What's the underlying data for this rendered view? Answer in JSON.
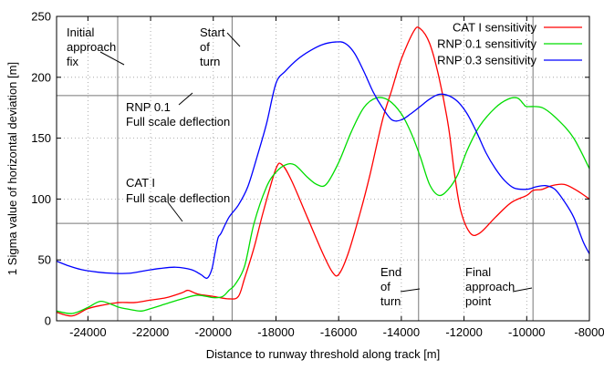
{
  "chart_data": {
    "type": "line",
    "xlabel": "Distance to runway threshold along track [m]",
    "ylabel": "1 Sigma value of horizontal deviation [m]",
    "xlim": [
      -25000,
      -8000
    ],
    "ylim": [
      0,
      250
    ],
    "grid": true,
    "legend_position": "top-right",
    "x_ticks": [
      -24000,
      -22000,
      -20000,
      -18000,
      -16000,
      -14000,
      -12000,
      -10000,
      -8000
    ],
    "x_tick_labels": [
      "-24000",
      "-22000",
      "-20000",
      "-18000",
      "-16000",
      "-14000",
      "-12000",
      "-10000",
      "-8000"
    ],
    "y_ticks": [
      0,
      50,
      100,
      150,
      200,
      250
    ],
    "y_tick_labels": [
      "0",
      "50",
      "100",
      "150",
      "200",
      "250"
    ],
    "series": [
      {
        "name": "CAT I sensitivity",
        "color": "#ff0000",
        "points": [
          [
            -25000,
            7
          ],
          [
            -24500,
            4
          ],
          [
            -24000,
            10
          ],
          [
            -23500,
            13
          ],
          [
            -23000,
            15
          ],
          [
            -22500,
            15
          ],
          [
            -22000,
            17
          ],
          [
            -21500,
            19
          ],
          [
            -21000,
            23
          ],
          [
            -20800,
            25
          ],
          [
            -20500,
            22
          ],
          [
            -20000,
            20
          ],
          [
            -19500,
            18
          ],
          [
            -19200,
            20
          ],
          [
            -19000,
            35
          ],
          [
            -18700,
            60
          ],
          [
            -18400,
            90
          ],
          [
            -18000,
            125
          ],
          [
            -17800,
            128
          ],
          [
            -17500,
            115
          ],
          [
            -17000,
            85
          ],
          [
            -16500,
            55
          ],
          [
            -16200,
            40
          ],
          [
            -16000,
            38
          ],
          [
            -15700,
            55
          ],
          [
            -15300,
            90
          ],
          [
            -15000,
            120
          ],
          [
            -14600,
            165
          ],
          [
            -14300,
            190
          ],
          [
            -14000,
            215
          ],
          [
            -13600,
            238
          ],
          [
            -13400,
            240
          ],
          [
            -13100,
            228
          ],
          [
            -12800,
            200
          ],
          [
            -12500,
            160
          ],
          [
            -12300,
            120
          ],
          [
            -12100,
            90
          ],
          [
            -11800,
            72
          ],
          [
            -11500,
            72
          ],
          [
            -11000,
            85
          ],
          [
            -10500,
            97
          ],
          [
            -10000,
            103
          ],
          [
            -9800,
            107
          ],
          [
            -9500,
            108
          ],
          [
            -9200,
            111
          ],
          [
            -8800,
            112
          ],
          [
            -8400,
            107
          ],
          [
            -8000,
            100
          ]
        ]
      },
      {
        "name": "RNP 0.1 sensitivity",
        "color": "#00dd00",
        "points": [
          [
            -25000,
            8
          ],
          [
            -24500,
            6
          ],
          [
            -24000,
            11
          ],
          [
            -23600,
            16
          ],
          [
            -23200,
            13
          ],
          [
            -23000,
            11
          ],
          [
            -22600,
            9
          ],
          [
            -22300,
            8
          ],
          [
            -22000,
            10
          ],
          [
            -21500,
            14
          ],
          [
            -21000,
            18
          ],
          [
            -20500,
            21
          ],
          [
            -20000,
            19
          ],
          [
            -19700,
            20
          ],
          [
            -19500,
            25
          ],
          [
            -19300,
            30
          ],
          [
            -19000,
            45
          ],
          [
            -18700,
            80
          ],
          [
            -18300,
            110
          ],
          [
            -18000,
            122
          ],
          [
            -17700,
            128
          ],
          [
            -17400,
            128
          ],
          [
            -17000,
            118
          ],
          [
            -16700,
            112
          ],
          [
            -16400,
            112
          ],
          [
            -16000,
            130
          ],
          [
            -15600,
            155
          ],
          [
            -15200,
            175
          ],
          [
            -14800,
            183
          ],
          [
            -14400,
            181
          ],
          [
            -14000,
            170
          ],
          [
            -13700,
            155
          ],
          [
            -13400,
            135
          ],
          [
            -13100,
            112
          ],
          [
            -12800,
            103
          ],
          [
            -12500,
            108
          ],
          [
            -12200,
            120
          ],
          [
            -11900,
            140
          ],
          [
            -11500,
            160
          ],
          [
            -11000,
            175
          ],
          [
            -10600,
            182
          ],
          [
            -10300,
            183
          ],
          [
            -10100,
            178
          ],
          [
            -10000,
            176
          ],
          [
            -9500,
            175
          ],
          [
            -9000,
            165
          ],
          [
            -8500,
            150
          ],
          [
            -8000,
            125
          ]
        ]
      },
      {
        "name": "RNP 0.3 sensitivity",
        "color": "#0000ff",
        "points": [
          [
            -25000,
            49
          ],
          [
            -24600,
            45
          ],
          [
            -24200,
            42
          ],
          [
            -23700,
            40
          ],
          [
            -23200,
            39
          ],
          [
            -22700,
            39
          ],
          [
            -22200,
            41
          ],
          [
            -21700,
            43
          ],
          [
            -21200,
            44
          ],
          [
            -20700,
            42
          ],
          [
            -20400,
            38
          ],
          [
            -20200,
            35
          ],
          [
            -20050,
            42
          ],
          [
            -19950,
            55
          ],
          [
            -19850,
            68
          ],
          [
            -19750,
            72
          ],
          [
            -19500,
            85
          ],
          [
            -19200,
            95
          ],
          [
            -18900,
            110
          ],
          [
            -18600,
            135
          ],
          [
            -18300,
            162
          ],
          [
            -18000,
            195
          ],
          [
            -17700,
            205
          ],
          [
            -17300,
            215
          ],
          [
            -16900,
            222
          ],
          [
            -16500,
            227
          ],
          [
            -16100,
            229
          ],
          [
            -15800,
            228
          ],
          [
            -15500,
            220
          ],
          [
            -15200,
            205
          ],
          [
            -14900,
            188
          ],
          [
            -14600,
            175
          ],
          [
            -14300,
            165
          ],
          [
            -14000,
            165
          ],
          [
            -13700,
            170
          ],
          [
            -13400,
            176
          ],
          [
            -13100,
            182
          ],
          [
            -12800,
            186
          ],
          [
            -12500,
            185
          ],
          [
            -12200,
            180
          ],
          [
            -11900,
            170
          ],
          [
            -11600,
            155
          ],
          [
            -11300,
            138
          ],
          [
            -11000,
            125
          ],
          [
            -10700,
            115
          ],
          [
            -10400,
            109
          ],
          [
            -10000,
            108
          ],
          [
            -9700,
            110
          ],
          [
            -9400,
            111
          ],
          [
            -9100,
            108
          ],
          [
            -8800,
            98
          ],
          [
            -8500,
            85
          ],
          [
            -8200,
            65
          ],
          [
            -8000,
            55
          ]
        ]
      }
    ],
    "reference_lines": {
      "vertical": [
        -23050,
        -19400,
        -13450,
        -9800
      ],
      "horizontal": [
        185,
        80
      ]
    },
    "annotations": [
      {
        "lines": [
          "Initial",
          "approach",
          "fix"
        ]
      },
      {
        "lines": [
          "Start",
          "of",
          "turn"
        ]
      },
      {
        "lines": [
          "RNP 0.1",
          "Full scale deflection"
        ]
      },
      {
        "lines": [
          "CAT I",
          "Full scale deflection"
        ]
      },
      {
        "lines": [
          "End",
          "of",
          "turn"
        ]
      },
      {
        "lines": [
          "Final",
          "approach",
          "point"
        ]
      }
    ]
  }
}
